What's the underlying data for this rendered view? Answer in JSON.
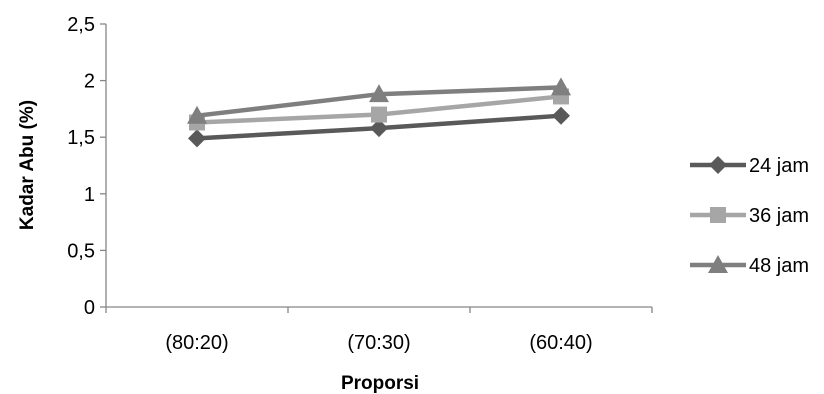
{
  "chart_data": {
    "type": "line",
    "categories": [
      "(80:20)",
      "(70:30)",
      "(60:40)"
    ],
    "series": [
      {
        "name": "24 jam",
        "values": [
          1.49,
          1.58,
          1.69
        ],
        "color": "#595959",
        "marker": "diamond"
      },
      {
        "name": "36 jam",
        "values": [
          1.63,
          1.7,
          1.86
        ],
        "color": "#A6A6A6",
        "marker": "square"
      },
      {
        "name": "48 jam",
        "values": [
          1.69,
          1.88,
          1.94
        ],
        "color": "#7F7F7F",
        "marker": "triangle"
      }
    ],
    "title": "",
    "xlabel": "Proporsi",
    "ylabel": "Kadar Abu (%)",
    "ylim": [
      0,
      2.5
    ],
    "yticks": [
      "0",
      "0,5",
      "1",
      "1,5",
      "2",
      "2,5"
    ],
    "ytick_values": [
      0,
      0.5,
      1,
      1.5,
      2,
      2.5
    ],
    "grid": false,
    "legend_position": "right"
  }
}
